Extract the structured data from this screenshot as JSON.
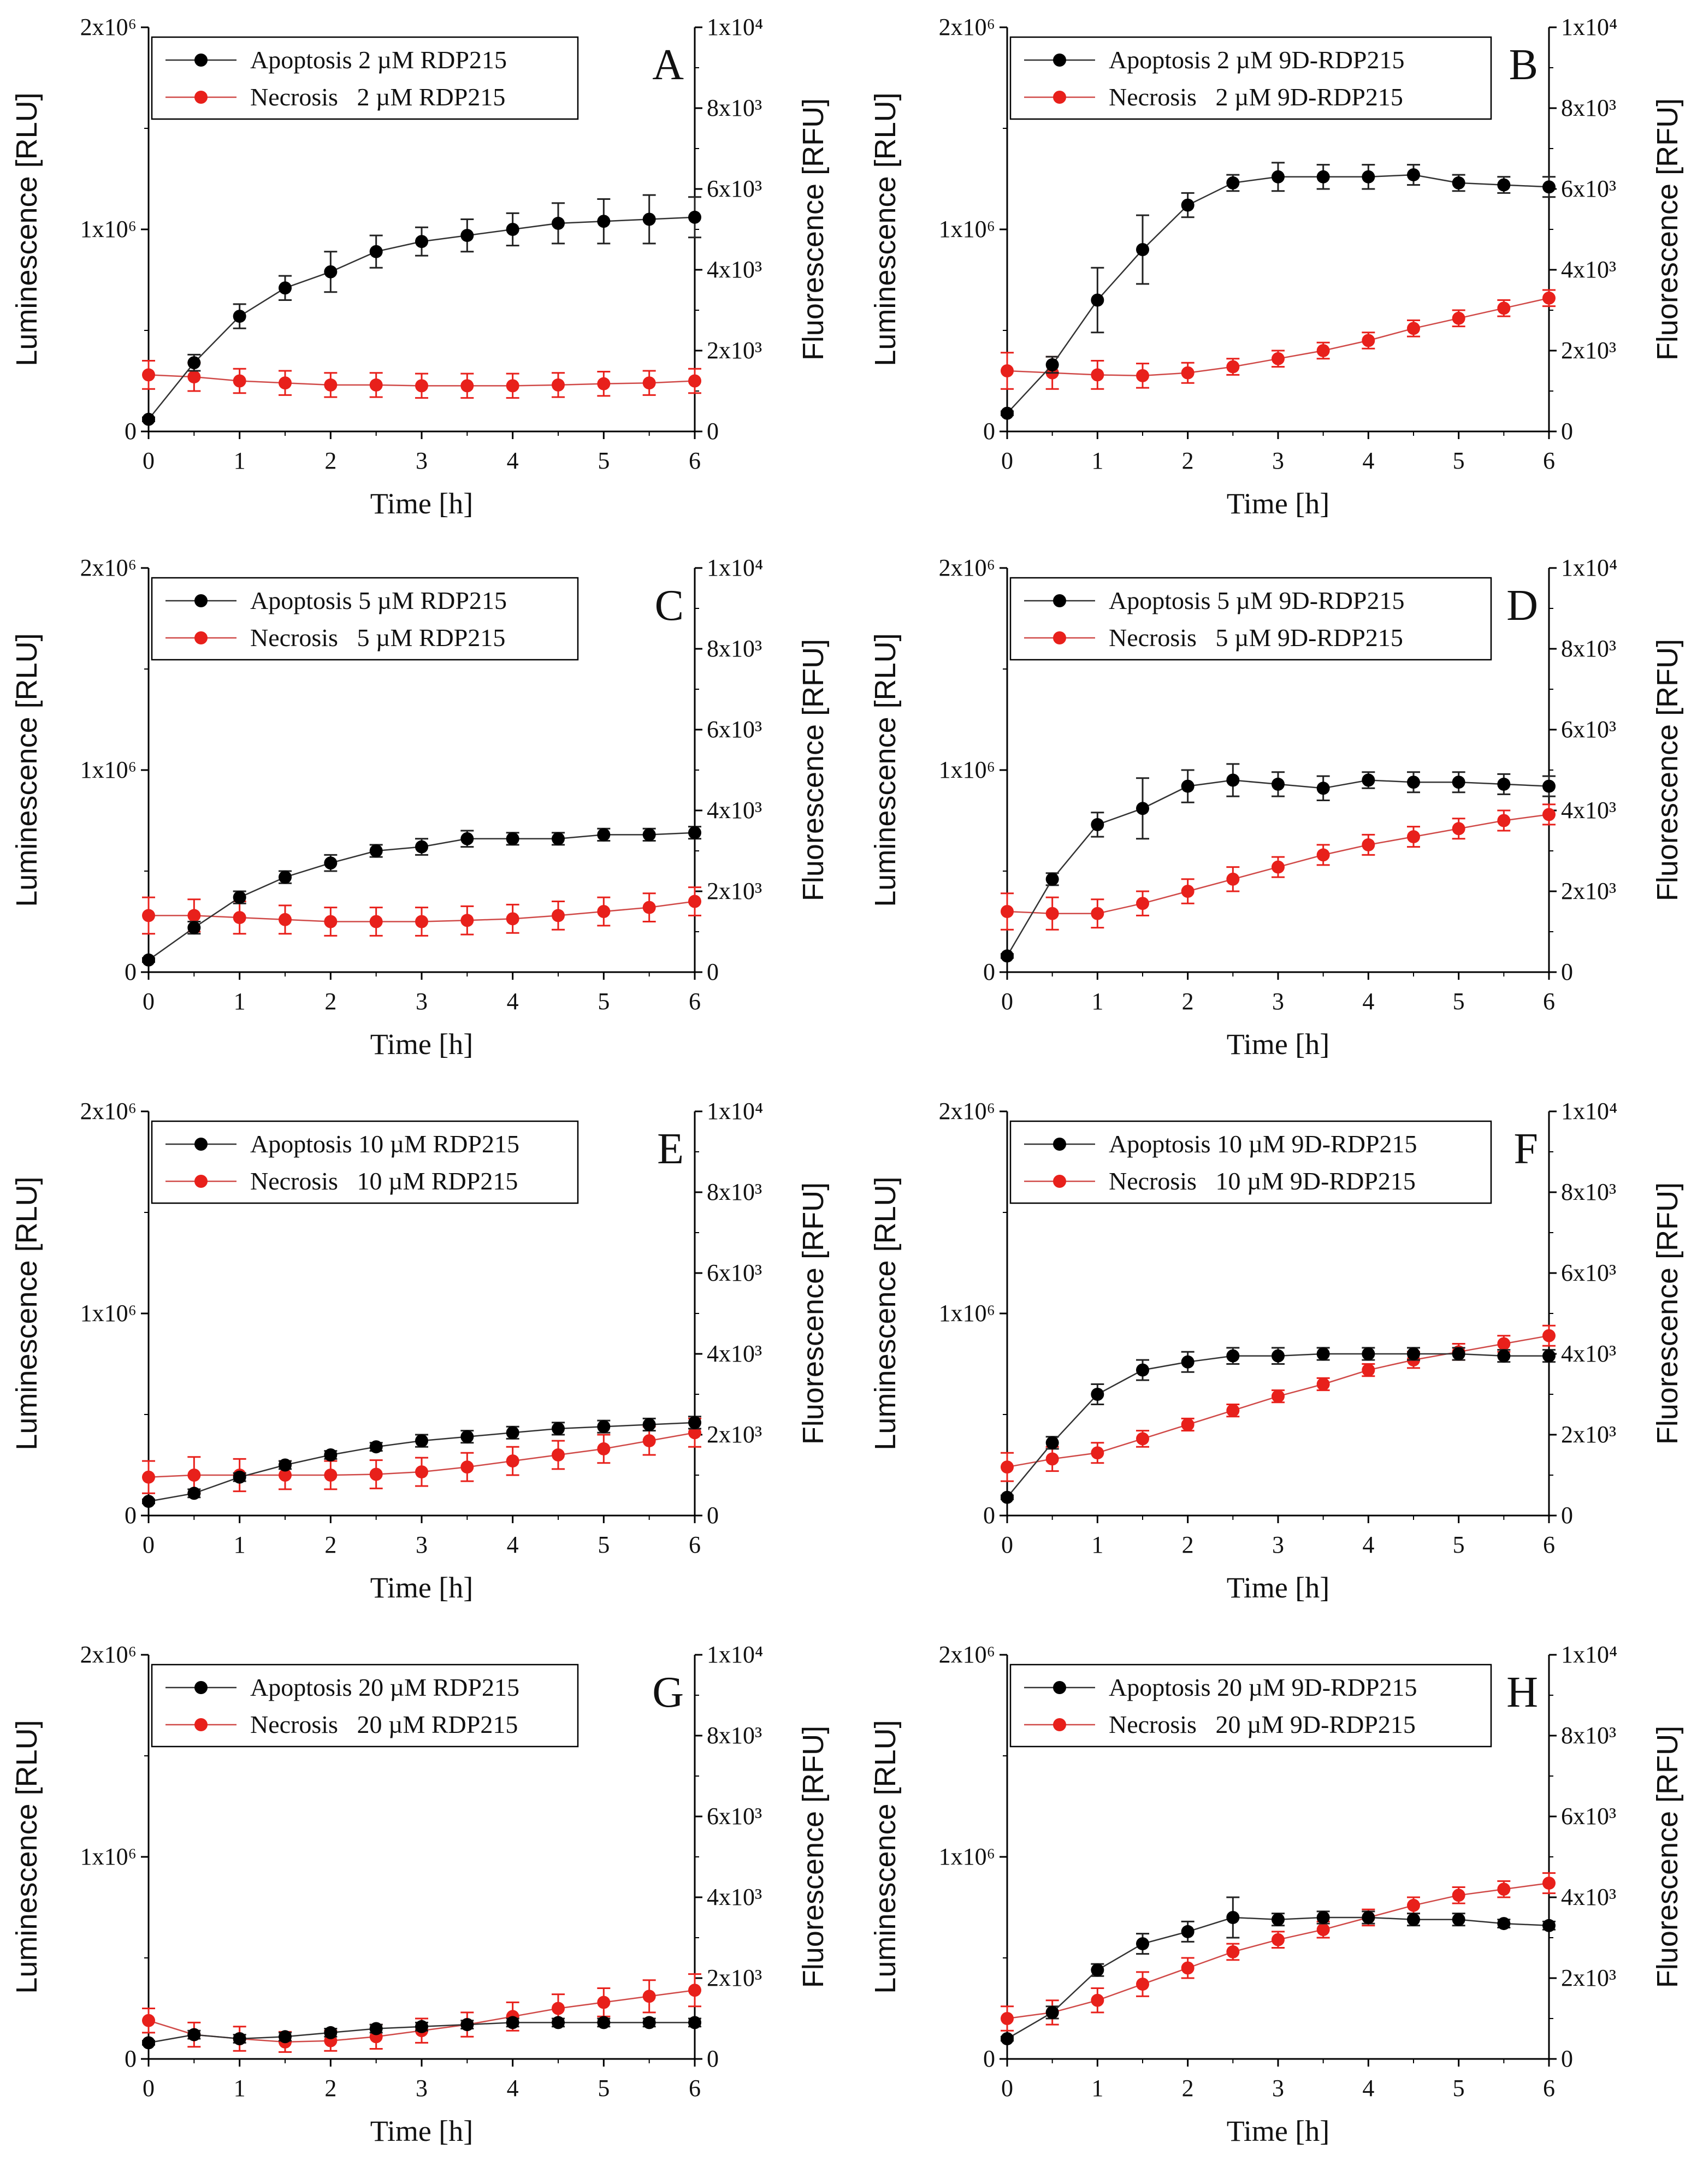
{
  "chart_data": [
    {
      "type": "line",
      "panel_label": "A",
      "x": [
        0,
        0.5,
        1,
        1.5,
        2,
        2.5,
        3,
        3.5,
        4,
        4.5,
        5,
        5.5,
        6
      ],
      "xlabel": "Time [h]",
      "ylabel": "Luminescence [RLU]",
      "y2label": "Fluorescence [RFU]",
      "xlim": [
        0,
        6
      ],
      "ylim": [
        0,
        2000000
      ],
      "y2lim": [
        0,
        10000
      ],
      "x_ticks": [
        "0",
        "1",
        "2",
        "3",
        "4",
        "5",
        "6"
      ],
      "y_ticks": [
        "0",
        "1x10⁶",
        "2x10⁶"
      ],
      "y2_ticks": [
        "0",
        "2x10³",
        "4x10³",
        "6x10³",
        "8x10³",
        "1x10⁴"
      ],
      "series": [
        {
          "name": "Apoptosis 2 µM RDP215",
          "axis": "left",
          "color": "#000000",
          "values": [
            60000,
            340000,
            570000,
            710000,
            790000,
            890000,
            940000,
            970000,
            1000000,
            1030000,
            1040000,
            1050000,
            1060000
          ],
          "errors": [
            10000,
            40000,
            60000,
            60000,
            100000,
            80000,
            70000,
            80000,
            80000,
            100000,
            110000,
            120000,
            100000
          ]
        },
        {
          "name": "Necrosis   2 µM RDP215",
          "axis": "right",
          "color": "#e8201b",
          "values": [
            1400,
            1350,
            1250,
            1200,
            1150,
            1150,
            1130,
            1130,
            1130,
            1150,
            1180,
            1200,
            1250
          ],
          "errors": [
            350,
            350,
            300,
            300,
            300,
            300,
            300,
            300,
            300,
            300,
            300,
            300,
            300
          ]
        }
      ]
    },
    {
      "type": "line",
      "panel_label": "B",
      "x": [
        0,
        0.5,
        1,
        1.5,
        2,
        2.5,
        3,
        3.5,
        4,
        4.5,
        5,
        5.5,
        6
      ],
      "xlabel": "Time [h]",
      "ylabel": "Luminescence [RLU]",
      "y2label": "Fluorescence [RFU]",
      "xlim": [
        0,
        6
      ],
      "ylim": [
        0,
        2000000
      ],
      "y2lim": [
        0,
        10000
      ],
      "x_ticks": [
        "0",
        "1",
        "2",
        "3",
        "4",
        "5",
        "6"
      ],
      "y_ticks": [
        "0",
        "1x10⁶",
        "2x10⁶"
      ],
      "y2_ticks": [
        "0",
        "2x10³",
        "4x10³",
        "6x10³",
        "8x10³",
        "1x10⁴"
      ],
      "series": [
        {
          "name": "Apoptosis 2 µM 9D-RDP215",
          "axis": "left",
          "color": "#000000",
          "values": [
            90000,
            330000,
            650000,
            900000,
            1120000,
            1230000,
            1260000,
            1260000,
            1260000,
            1270000,
            1230000,
            1220000,
            1210000
          ],
          "errors": [
            10000,
            40000,
            160000,
            170000,
            60000,
            40000,
            70000,
            60000,
            60000,
            50000,
            40000,
            40000,
            50000
          ]
        },
        {
          "name": "Necrosis   2 µM 9D-RDP215",
          "axis": "right",
          "color": "#e8201b",
          "values": [
            1500,
            1450,
            1400,
            1380,
            1450,
            1600,
            1800,
            2000,
            2250,
            2550,
            2800,
            3050,
            3300
          ],
          "errors": [
            450,
            400,
            350,
            300,
            250,
            200,
            200,
            200,
            200,
            200,
            200,
            200,
            200
          ]
        }
      ]
    },
    {
      "type": "line",
      "panel_label": "C",
      "x": [
        0,
        0.5,
        1,
        1.5,
        2,
        2.5,
        3,
        3.5,
        4,
        4.5,
        5,
        5.5,
        6
      ],
      "xlabel": "Time [h]",
      "ylabel": "Luminescence [RLU]",
      "y2label": "Fluorescence [RFU]",
      "xlim": [
        0,
        6
      ],
      "ylim": [
        0,
        2000000
      ],
      "y2lim": [
        0,
        10000
      ],
      "x_ticks": [
        "0",
        "1",
        "2",
        "3",
        "4",
        "5",
        "6"
      ],
      "y_ticks": [
        "0",
        "1x10⁶",
        "2x10⁶"
      ],
      "y2_ticks": [
        "0",
        "2x10³",
        "4x10³",
        "6x10³",
        "8x10³",
        "1x10⁴"
      ],
      "series": [
        {
          "name": "Apoptosis 5 µM RDP215",
          "axis": "left",
          "color": "#000000",
          "values": [
            60000,
            220000,
            370000,
            470000,
            540000,
            600000,
            620000,
            660000,
            660000,
            660000,
            680000,
            680000,
            690000
          ],
          "errors": [
            10000,
            30000,
            30000,
            30000,
            40000,
            30000,
            40000,
            40000,
            30000,
            30000,
            30000,
            30000,
            30000
          ]
        },
        {
          "name": "Necrosis   5 µM RDP215",
          "axis": "right",
          "color": "#e8201b",
          "values": [
            1400,
            1400,
            1350,
            1300,
            1250,
            1250,
            1250,
            1280,
            1320,
            1400,
            1500,
            1600,
            1750
          ],
          "errors": [
            450,
            400,
            400,
            350,
            350,
            350,
            350,
            350,
            350,
            350,
            350,
            350,
            350
          ]
        }
      ]
    },
    {
      "type": "line",
      "panel_label": "D",
      "x": [
        0,
        0.5,
        1,
        1.5,
        2,
        2.5,
        3,
        3.5,
        4,
        4.5,
        5,
        5.5,
        6
      ],
      "xlabel": "Time [h]",
      "ylabel": "Luminescence [RLU]",
      "y2label": "Fluorescence [RFU]",
      "xlim": [
        0,
        6
      ],
      "ylim": [
        0,
        2000000
      ],
      "y2lim": [
        0,
        10000
      ],
      "x_ticks": [
        "0",
        "1",
        "2",
        "3",
        "4",
        "5",
        "6"
      ],
      "y_ticks": [
        "0",
        "1x10⁶",
        "2x10⁶"
      ],
      "y2_ticks": [
        "0",
        "2x10³",
        "4x10³",
        "6x10³",
        "8x10³",
        "1x10⁴"
      ],
      "series": [
        {
          "name": "Apoptosis 5 µM 9D-RDP215",
          "axis": "left",
          "color": "#000000",
          "values": [
            80000,
            460000,
            730000,
            810000,
            920000,
            950000,
            930000,
            910000,
            950000,
            940000,
            940000,
            930000,
            920000
          ],
          "errors": [
            10000,
            30000,
            60000,
            150000,
            80000,
            80000,
            60000,
            60000,
            40000,
            50000,
            50000,
            50000,
            50000
          ]
        },
        {
          "name": "Necrosis   5 µM 9D-RDP215",
          "axis": "right",
          "color": "#e8201b",
          "values": [
            1500,
            1450,
            1450,
            1700,
            2000,
            2300,
            2600,
            2900,
            3150,
            3350,
            3550,
            3750,
            3900
          ],
          "errors": [
            450,
            400,
            350,
            300,
            300,
            300,
            250,
            250,
            250,
            250,
            250,
            250,
            250
          ]
        }
      ]
    },
    {
      "type": "line",
      "panel_label": "E",
      "x": [
        0,
        0.5,
        1,
        1.5,
        2,
        2.5,
        3,
        3.5,
        4,
        4.5,
        5,
        5.5,
        6
      ],
      "xlabel": "Time [h]",
      "ylabel": "Luminescence [RLU]",
      "y2label": "Fluorescence [RFU]",
      "xlim": [
        0,
        6
      ],
      "ylim": [
        0,
        2000000
      ],
      "y2lim": [
        0,
        10000
      ],
      "x_ticks": [
        "0",
        "1",
        "2",
        "3",
        "4",
        "5",
        "6"
      ],
      "y_ticks": [
        "0",
        "1x10⁶",
        "2x10⁶"
      ],
      "y2_ticks": [
        "0",
        "2x10³",
        "4x10³",
        "6x10³",
        "8x10³",
        "1x10⁴"
      ],
      "series": [
        {
          "name": "Apoptosis 10 µM RDP215",
          "axis": "left",
          "color": "#000000",
          "values": [
            70000,
            110000,
            190000,
            250000,
            300000,
            340000,
            370000,
            390000,
            410000,
            430000,
            440000,
            450000,
            460000
          ],
          "errors": [
            10000,
            20000,
            20000,
            20000,
            20000,
            20000,
            30000,
            30000,
            30000,
            30000,
            30000,
            30000,
            30000
          ]
        },
        {
          "name": "Necrosis   10 µM RDP215",
          "axis": "right",
          "color": "#e8201b",
          "values": [
            950,
            1000,
            1000,
            1000,
            1000,
            1020,
            1080,
            1200,
            1350,
            1500,
            1650,
            1850,
            2050
          ],
          "errors": [
            400,
            450,
            400,
            350,
            350,
            350,
            350,
            350,
            350,
            350,
            350,
            350,
            350
          ]
        }
      ]
    },
    {
      "type": "line",
      "panel_label": "F",
      "x": [
        0,
        0.5,
        1,
        1.5,
        2,
        2.5,
        3,
        3.5,
        4,
        4.5,
        5,
        5.5,
        6
      ],
      "xlabel": "Time [h]",
      "ylabel": "Luminescence [RLU]",
      "y2label": "Fluorescence [RFU]",
      "xlim": [
        0,
        6
      ],
      "ylim": [
        0,
        2000000
      ],
      "y2lim": [
        0,
        10000
      ],
      "x_ticks": [
        "0",
        "1",
        "2",
        "3",
        "4",
        "5",
        "6"
      ],
      "y_ticks": [
        "0",
        "1x10⁶",
        "2x10⁶"
      ],
      "y2_ticks": [
        "0",
        "2x10³",
        "4x10³",
        "6x10³",
        "8x10³",
        "1x10⁴"
      ],
      "series": [
        {
          "name": "Apoptosis 10 µM 9D-RDP215",
          "axis": "left",
          "color": "#000000",
          "values": [
            90000,
            360000,
            600000,
            720000,
            760000,
            790000,
            790000,
            800000,
            800000,
            800000,
            800000,
            790000,
            790000
          ],
          "errors": [
            10000,
            30000,
            50000,
            50000,
            50000,
            40000,
            40000,
            30000,
            30000,
            30000,
            30000,
            30000,
            30000
          ]
        },
        {
          "name": "Necrosis   10 µM 9D-RDP215",
          "axis": "right",
          "color": "#e8201b",
          "values": [
            1200,
            1400,
            1550,
            1900,
            2250,
            2600,
            2950,
            3250,
            3600,
            3850,
            4050,
            4250,
            4450
          ],
          "errors": [
            350,
            300,
            250,
            200,
            150,
            150,
            150,
            150,
            150,
            200,
            200,
            200,
            250
          ]
        }
      ]
    },
    {
      "type": "line",
      "panel_label": "G",
      "x": [
        0,
        0.5,
        1,
        1.5,
        2,
        2.5,
        3,
        3.5,
        4,
        4.5,
        5,
        5.5,
        6
      ],
      "xlabel": "Time [h]",
      "ylabel": "Luminescence [RLU]",
      "y2label": "Fluorescence [RFU]",
      "xlim": [
        0,
        6
      ],
      "ylim": [
        0,
        2000000
      ],
      "y2lim": [
        0,
        10000
      ],
      "x_ticks": [
        "0",
        "1",
        "2",
        "3",
        "4",
        "5",
        "6"
      ],
      "y_ticks": [
        "0",
        "1x10⁶",
        "2x10⁶"
      ],
      "y2_ticks": [
        "0",
        "2x10³",
        "4x10³",
        "6x10³",
        "8x10³",
        "1x10⁴"
      ],
      "series": [
        {
          "name": "Apoptosis 20 µM RDP215",
          "axis": "left",
          "color": "#000000",
          "values": [
            80000,
            120000,
            100000,
            110000,
            130000,
            150000,
            160000,
            170000,
            180000,
            180000,
            180000,
            180000,
            180000
          ],
          "errors": [
            10000,
            20000,
            20000,
            20000,
            20000,
            20000,
            20000,
            20000,
            20000,
            20000,
            20000,
            20000,
            20000
          ]
        },
        {
          "name": "Necrosis   20 µM RDP215",
          "axis": "right",
          "color": "#e8201b",
          "values": [
            950,
            600,
            500,
            420,
            450,
            550,
            700,
            850,
            1050,
            1250,
            1400,
            1550,
            1700
          ],
          "errors": [
            300,
            300,
            300,
            250,
            250,
            300,
            300,
            300,
            350,
            350,
            350,
            400,
            400
          ]
        }
      ]
    },
    {
      "type": "line",
      "panel_label": "H",
      "x": [
        0,
        0.5,
        1,
        1.5,
        2,
        2.5,
        3,
        3.5,
        4,
        4.5,
        5,
        5.5,
        6
      ],
      "xlabel": "Time [h]",
      "ylabel": "Luminescence [RLU]",
      "y2label": "Fluorescence [RFU]",
      "xlim": [
        0,
        6
      ],
      "ylim": [
        0,
        2000000
      ],
      "y2lim": [
        0,
        10000
      ],
      "x_ticks": [
        "0",
        "1",
        "2",
        "3",
        "4",
        "5",
        "6"
      ],
      "y_ticks": [
        "0",
        "1x10⁶",
        "2x10⁶"
      ],
      "y2_ticks": [
        "0",
        "2x10³",
        "4x10³",
        "6x10³",
        "8x10³",
        "1x10⁴"
      ],
      "series": [
        {
          "name": "Apoptosis 20 µM 9D-RDP215",
          "axis": "left",
          "color": "#000000",
          "values": [
            100000,
            230000,
            440000,
            570000,
            630000,
            700000,
            690000,
            700000,
            700000,
            690000,
            690000,
            670000,
            660000
          ],
          "errors": [
            10000,
            30000,
            30000,
            50000,
            50000,
            100000,
            30000,
            30000,
            30000,
            30000,
            30000,
            20000,
            20000
          ]
        },
        {
          "name": "Necrosis   20 µM 9D-RDP215",
          "axis": "right",
          "color": "#e8201b",
          "values": [
            1000,
            1150,
            1450,
            1850,
            2250,
            2650,
            2950,
            3200,
            3500,
            3800,
            4050,
            4200,
            4350
          ],
          "errors": [
            300,
            300,
            300,
            300,
            250,
            200,
            200,
            200,
            200,
            200,
            200,
            200,
            250
          ]
        }
      ]
    }
  ]
}
